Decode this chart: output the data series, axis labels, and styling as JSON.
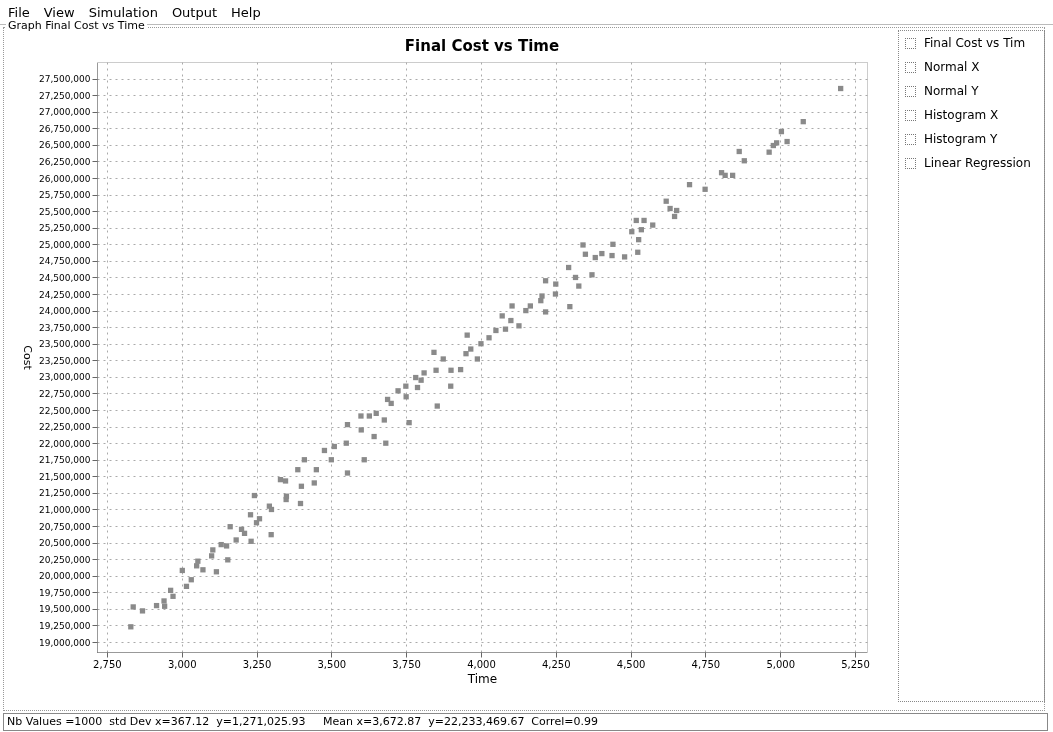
{
  "chart_data": {
    "type": "scatter",
    "title": "Final Cost vs Time",
    "xlabel": "Time",
    "ylabel": "Cost",
    "x": [
      5202,
      5077,
      5004,
      5023,
      4988,
      4977,
      4963,
      4863,
      4880,
      4804,
      4816,
      4841,
      4697,
      4749,
      4619,
      4632,
      4654,
      4647,
      4519,
      4545,
      4574,
      4504,
      4536,
      4527,
      4341,
      4441,
      4524,
      4480,
      4438,
      4404,
      4349,
      4382,
      4293,
      4371,
      4316,
      4216,
      4327,
      4297,
      4249,
      4204,
      4216,
      4104,
      4165,
      4071,
      4127,
      4082,
      4027,
      2830,
      2838,
      2869,
      2916,
      2943,
      2941,
      2963,
      2971,
      3002,
      3016,
      3032,
      3054,
      3071,
      3116,
      3104,
      3132,
      3154,
      3162,
      3182,
      3230,
      3243,
      3210,
      3260,
      3232,
      3299,
      3293,
      3330,
      3347,
      3349,
      3388,
      3410,
      3397,
      3443,
      3477,
      3510,
      3554,
      3554,
      3599,
      3627,
      3610,
      3643,
      3677,
      3682,
      3688,
      3723,
      3749,
      3760,
      3782,
      3788,
      3810,
      3843,
      3854,
      3874,
      3899,
      3932,
      3954,
      3966,
      3988,
      3100,
      3200,
      3300,
      3400,
      3450,
      3500,
      3550,
      3600,
      3650,
      3700,
      3750,
      3800,
      3850,
      3900,
      3950,
      4000,
      4050,
      4100,
      4150,
      4200,
      4250,
      3350,
      3250,
      3150,
      3050
    ],
    "series": [
      {
        "color": "#8a8a8a",
        "values": [
          27350000,
          26850000,
          26700000,
          26550000,
          26530000,
          26490000,
          26390000,
          26400000,
          26260000,
          26080000,
          26040000,
          26040000,
          25900000,
          25830000,
          25650000,
          25540000,
          25510000,
          25420000,
          25360000,
          25360000,
          25290000,
          25190000,
          25220000,
          25070000,
          24990000,
          25000000,
          24880000,
          24810000,
          24830000,
          24860000,
          24850000,
          24800000,
          24650000,
          24540000,
          24500000,
          24450000,
          24370000,
          24060000,
          24250000,
          24220000,
          23980000,
          24070000,
          24070000,
          23920000,
          23770000,
          23720000,
          23590000,
          19230000,
          19530000,
          19470000,
          19550000,
          19540000,
          19620000,
          19780000,
          19690000,
          20080000,
          19840000,
          19940000,
          20220000,
          20090000,
          20060000,
          20390000,
          20470000,
          20240000,
          20740000,
          20540000,
          20920000,
          21210000,
          20640000,
          20860000,
          20520000,
          20620000,
          21050000,
          21450000,
          21430000,
          21150000,
          21600000,
          21750000,
          21090000,
          21400000,
          21890000,
          21950000,
          22280000,
          21550000,
          22410000,
          22410000,
          21750000,
          22100000,
          22350000,
          22000000,
          22660000,
          22790000,
          22860000,
          22310000,
          22990000,
          22840000,
          23060000,
          23370000,
          22560000,
          23270000,
          22860000,
          23110000,
          23630000,
          23420000,
          23270000,
          20300000,
          20700000,
          21000000,
          21350000,
          21600000,
          21750000,
          22000000,
          22200000,
          22450000,
          22600000,
          22700000,
          22950000,
          23100000,
          23100000,
          23350000,
          23500000,
          23700000,
          23850000,
          24000000,
          24150000,
          24400000,
          21200000,
          20800000,
          20450000,
          20150000
        ]
      }
    ],
    "xlim": [
      2717,
      5290
    ],
    "ylim": [
      18850000,
      27750000
    ],
    "xticks": [
      {
        "value": 2750,
        "label": "2,750"
      },
      {
        "value": 3000,
        "label": "3,000"
      },
      {
        "value": 3250,
        "label": "3,250"
      },
      {
        "value": 3500,
        "label": "3,500"
      },
      {
        "value": 3750,
        "label": "3,750"
      },
      {
        "value": 4000,
        "label": "4,000"
      },
      {
        "value": 4250,
        "label": "4,250"
      },
      {
        "value": 4500,
        "label": "4,500"
      },
      {
        "value": 4750,
        "label": "4,750"
      },
      {
        "value": 5000,
        "label": "5,000"
      },
      {
        "value": 5250,
        "label": "5,250"
      }
    ],
    "yticks": [
      {
        "value": 19000000,
        "label": "19,000,000"
      },
      {
        "value": 19250000,
        "label": "19,250,000"
      },
      {
        "value": 19500000,
        "label": "19,500,000"
      },
      {
        "value": 19750000,
        "label": "19,750,000"
      },
      {
        "value": 20000000,
        "label": "20,000,000"
      },
      {
        "value": 20250000,
        "label": "20,250,000"
      },
      {
        "value": 20500000,
        "label": "20,500,000"
      },
      {
        "value": 20750000,
        "label": "20,750,000"
      },
      {
        "value": 21000000,
        "label": "21,000,000"
      },
      {
        "value": 21250000,
        "label": "21,250,000"
      },
      {
        "value": 21500000,
        "label": "21,500,000"
      },
      {
        "value": 21750000,
        "label": "21,750,000"
      },
      {
        "value": 22000000,
        "label": "22,000,000"
      },
      {
        "value": 22250000,
        "label": "22,250,000"
      },
      {
        "value": 22500000,
        "label": "22,500,000"
      },
      {
        "value": 22750000,
        "label": "22,750,000"
      },
      {
        "value": 23000000,
        "label": "23,000,000"
      },
      {
        "value": 23250000,
        "label": "23,250,000"
      },
      {
        "value": 23500000,
        "label": "23,500,000"
      },
      {
        "value": 23750000,
        "label": "23,750,000"
      },
      {
        "value": 24000000,
        "label": "24,000,000"
      },
      {
        "value": 24250000,
        "label": "24,250,000"
      },
      {
        "value": 24500000,
        "label": "24,500,000"
      },
      {
        "value": 24750000,
        "label": "24,750,000"
      },
      {
        "value": 25000000,
        "label": "25,000,000"
      },
      {
        "value": 25250000,
        "label": "25,250,000"
      },
      {
        "value": 25500000,
        "label": "25,500,000"
      },
      {
        "value": 25750000,
        "label": "25,750,000"
      },
      {
        "value": 26000000,
        "label": "26,000,000"
      },
      {
        "value": 26250000,
        "label": "26,250,000"
      },
      {
        "value": 26500000,
        "label": "26,500,000"
      },
      {
        "value": 26750000,
        "label": "26,750,000"
      },
      {
        "value": 27000000,
        "label": "27,000,000"
      },
      {
        "value": 27250000,
        "label": "27,250,000"
      },
      {
        "value": 27500000,
        "label": "27,500,000"
      }
    ],
    "grid": true,
    "marker": "square",
    "annotations": [
      "File",
      "View",
      "Simulation",
      "Output",
      "Help",
      "Graph Final Cost vs Time",
      "Final Cost vs Tim",
      "Normal X",
      "Normal Y",
      "Histogram X",
      "Histogram Y",
      "Linear Regression",
      "Nb Values =1000  std Dev x=367.12  y=1,271,025.93     Mean x=3,672.87  y=22,233,469.67  Correl=0.99"
    ]
  }
}
